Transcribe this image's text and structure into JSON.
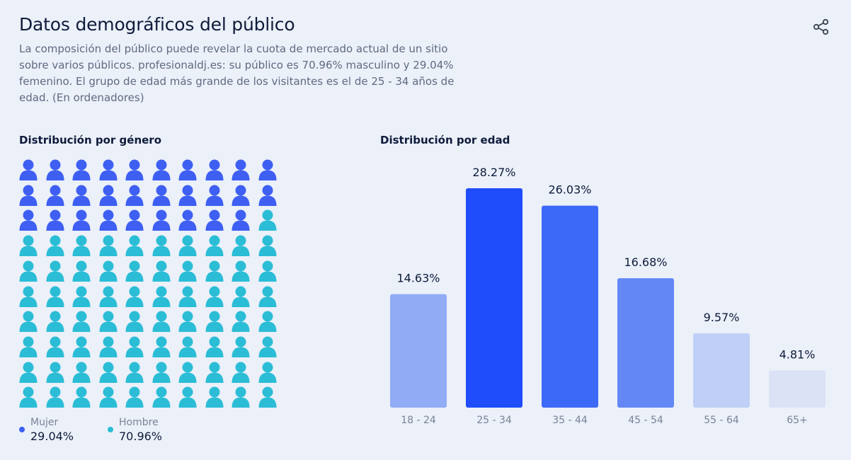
{
  "header": {
    "title": "Datos demográficos del público",
    "description": "La composición del público puede revelar la cuota de mercado actual de un sitio sobre varios públicos. profesionaldj.es: su público es 70.96% masculino y 29.04% femenino. El grupo de edad más grande de los visitantes es el de 25 - 34 años de edad. (En ordenadores)",
    "share_icon": "share-icon"
  },
  "gender": {
    "heading": "Distribución por género",
    "women_label": "Mujer",
    "women_value": "29.04%",
    "men_label": "Hombre",
    "men_value": "70.96%",
    "women_color": "#3e5ff2",
    "men_color": "#2bbdd6"
  },
  "age": {
    "heading": "Distribución por edad"
  },
  "chart_data": [
    {
      "type": "pictogram",
      "categories": [
        "Mujer",
        "Hombre"
      ],
      "values": [
        29.04,
        70.96
      ],
      "icons_total": 100,
      "icons_per_category": [
        29,
        71
      ],
      "colors": [
        "#3e5ff2",
        "#2bbdd6"
      ]
    },
    {
      "type": "bar",
      "categories": [
        "18 - 24",
        "25 - 34",
        "35 - 44",
        "45 - 54",
        "55 - 64",
        "65+"
      ],
      "values": [
        14.63,
        28.27,
        26.03,
        16.68,
        9.57,
        4.81
      ],
      "labels": [
        "14.63%",
        "28.27%",
        "26.03%",
        "16.68%",
        "9.57%",
        "4.81%"
      ],
      "colors": [
        "#91acf5",
        "#1f4dfb",
        "#3d69f8",
        "#6388f6",
        "#c0cff6",
        "#dbe2f6"
      ],
      "grid": false
    }
  ]
}
